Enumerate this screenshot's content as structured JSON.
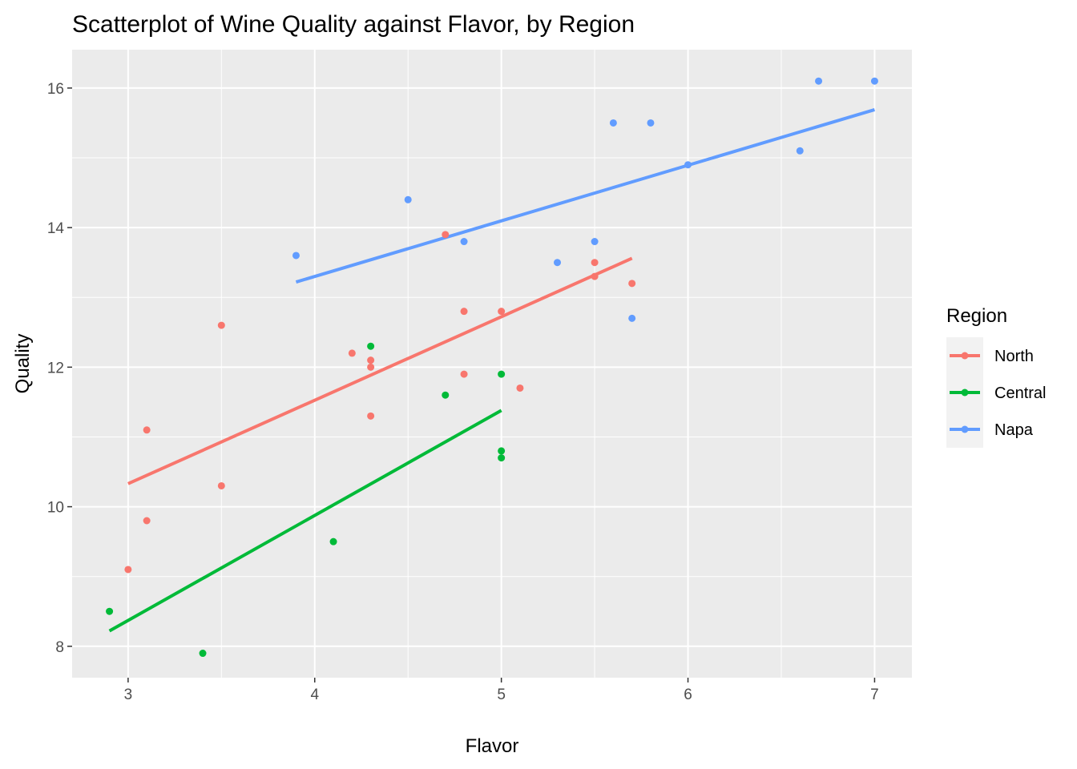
{
  "chart_data": {
    "type": "scatter",
    "title": "Scatterplot of Wine Quality against Flavor, by Region",
    "xlabel": "Flavor",
    "ylabel": "Quality",
    "xlim": [
      2.7,
      7.2
    ],
    "ylim": [
      7.55,
      16.55
    ],
    "x_ticks": [
      3,
      4,
      5,
      6,
      7
    ],
    "y_ticks": [
      8,
      10,
      12,
      14,
      16
    ],
    "x_tick_labels": [
      "3",
      "4",
      "5",
      "6",
      "7"
    ],
    "y_tick_labels": [
      "8",
      "10",
      "12",
      "14",
      "16"
    ],
    "grid": true,
    "legend": {
      "title": "Region",
      "position": "right"
    },
    "series": [
      {
        "name": "North",
        "color": "#F8766D",
        "points": [
          {
            "x": 3.0,
            "y": 9.1
          },
          {
            "x": 3.1,
            "y": 11.1
          },
          {
            "x": 3.1,
            "y": 9.8
          },
          {
            "x": 3.5,
            "y": 12.6
          },
          {
            "x": 3.5,
            "y": 10.3
          },
          {
            "x": 4.2,
            "y": 12.2
          },
          {
            "x": 4.3,
            "y": 12.1
          },
          {
            "x": 4.3,
            "y": 12.0
          },
          {
            "x": 4.3,
            "y": 11.3
          },
          {
            "x": 4.7,
            "y": 13.9
          },
          {
            "x": 4.8,
            "y": 12.8
          },
          {
            "x": 4.8,
            "y": 11.9
          },
          {
            "x": 5.0,
            "y": 12.8
          },
          {
            "x": 5.1,
            "y": 11.7
          },
          {
            "x": 5.5,
            "y": 13.5
          },
          {
            "x": 5.5,
            "y": 13.3
          },
          {
            "x": 5.7,
            "y": 13.2
          }
        ],
        "fit_line": [
          {
            "x": 3.0,
            "y": 10.33
          },
          {
            "x": 5.7,
            "y": 13.56
          }
        ]
      },
      {
        "name": "Central",
        "color": "#00BA38",
        "points": [
          {
            "x": 2.9,
            "y": 8.5
          },
          {
            "x": 3.4,
            "y": 7.9
          },
          {
            "x": 4.1,
            "y": 9.5
          },
          {
            "x": 4.3,
            "y": 12.3
          },
          {
            "x": 4.7,
            "y": 11.6
          },
          {
            "x": 5.0,
            "y": 11.9
          },
          {
            "x": 5.0,
            "y": 10.8
          },
          {
            "x": 5.0,
            "y": 10.7
          }
        ],
        "fit_line": [
          {
            "x": 2.9,
            "y": 8.22
          },
          {
            "x": 5.0,
            "y": 11.38
          }
        ]
      },
      {
        "name": "Napa",
        "color": "#619CFF",
        "points": [
          {
            "x": 3.9,
            "y": 13.6
          },
          {
            "x": 4.5,
            "y": 14.4
          },
          {
            "x": 4.8,
            "y": 13.8
          },
          {
            "x": 5.3,
            "y": 13.5
          },
          {
            "x": 5.5,
            "y": 13.8
          },
          {
            "x": 5.6,
            "y": 15.5
          },
          {
            "x": 5.7,
            "y": 12.7
          },
          {
            "x": 5.8,
            "y": 15.5
          },
          {
            "x": 6.0,
            "y": 14.9
          },
          {
            "x": 6.6,
            "y": 15.1
          },
          {
            "x": 6.7,
            "y": 16.1
          },
          {
            "x": 7.0,
            "y": 16.1
          }
        ],
        "fit_line": [
          {
            "x": 3.9,
            "y": 13.22
          },
          {
            "x": 7.0,
            "y": 15.69
          }
        ]
      }
    ]
  }
}
